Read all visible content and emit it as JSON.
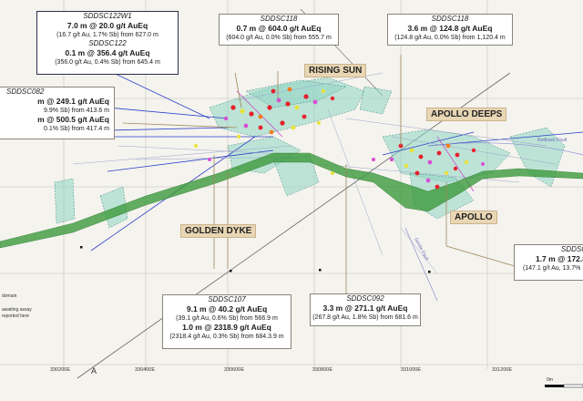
{
  "callouts": {
    "c122w1": {
      "hole": "SDDSC122W1",
      "hit": "7.0 m @ 20.0 g/t AuEq",
      "detail": "(16.7 g/t Au, 1.7% Sb) from 627.0 m",
      "hole2": "SDDSC122",
      "hit2": "0.1 m @ 356.4 g/t AuEq",
      "detail2": "(356.0 g/t Au, 0.4% Sb) from 645.4 m"
    },
    "c118a": {
      "hole": "SDDSC118",
      "hit": "0.7 m @ 604.0 g/t AuEq",
      "detail": "(604.0 g/t Au, 0.0% Sb) from 555.7 m"
    },
    "c118b": {
      "hole": "SDDSC118",
      "hit": "3.6 m @ 124.8 g/t AuEq",
      "detail": "(124.8 g/t Au, 0.0% Sb) from 1,120.4 m"
    },
    "c082": {
      "hole": "SDDSC082",
      "hit": "m @ 249.1 g/t AuEq",
      "detail": "9.9% Sb) from 413.6 m",
      "hit2": "m @ 500.5 g/t AuEq",
      "detail2": "0.1% Sb) from 417.4 m"
    },
    "c107": {
      "hole": "SDDSC107",
      "hit": "9.1 m @ 40.2 g/t AuEq",
      "detail": "(39.1 g/t Au, 0.6% Sb) from 566.9 m",
      "hit2": "1.0 m @ 2318.9 g/t AuEq",
      "detail2": "(2318.4 g/t Au, 0.3% Sb) from 684.3.9 m"
    },
    "c092": {
      "hole": "SDDSC092",
      "hit": "3.3 m @ 271.1 g/t AuEq",
      "detail": "(267.8 g/t Au, 1.8% Sb) from 681.6 m"
    },
    "cright": {
      "hole": "SDDSC",
      "hit": "1.7 m @ 172.8",
      "detail": "(147.1 g/t Au, 13.7% S"
    }
  },
  "labels": {
    "rising_sun": "RISING SUN",
    "apollo_deeps": "APOLLO DEEPS",
    "golden_dyke": "GOLDEN DYKE",
    "apollo": "APOLLO"
  },
  "map_text": {
    "redback_fault": "Redback Fault",
    "gentle_fault": "Gentle Fault",
    "section_marker": "A"
  },
  "ticks": [
    "330200E",
    "330400E",
    "330600E",
    "330800E",
    "331000E",
    "331200E"
  ],
  "legend": {
    "line1": "domain",
    "line2": "awaiting assay",
    "line3": "reported here"
  },
  "scale": {
    "label": "0m"
  },
  "colors": {
    "dyke": "#3c9a3c",
    "lode": "#8fd6c4",
    "drill_blue": "#2b3fc8",
    "grid": "#b9b6ab",
    "callout_border": "#8a8478",
    "label_bg": "#e8d6b4",
    "leader": "#a0875a"
  }
}
